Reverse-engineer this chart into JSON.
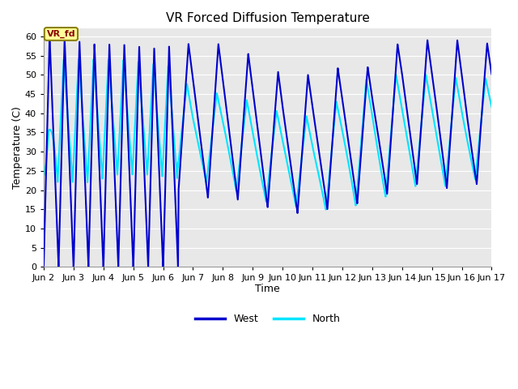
{
  "title": "VR Forced Diffusion Temperature",
  "xlabel": "Time",
  "ylabel": "Temperature (C)",
  "xlim": [
    2,
    17
  ],
  "ylim": [
    0,
    62
  ],
  "yticks": [
    0,
    5,
    10,
    15,
    20,
    25,
    30,
    35,
    40,
    45,
    50,
    55,
    60
  ],
  "xtick_positions": [
    2,
    3,
    4,
    5,
    6,
    7,
    8,
    9,
    10,
    11,
    12,
    13,
    14,
    15,
    16,
    17
  ],
  "xtick_labels": [
    "Jun 2",
    "Jun 3",
    "Jun 4",
    "Jun 5",
    "Jun 6",
    "Jun 7",
    "Jun 8",
    "Jun 9",
    "Jun 10",
    "Jun 11",
    "Jun 12",
    "Jun 13",
    "Jun 14",
    "Jun 15",
    "Jun 16",
    "Jun 17"
  ],
  "west_color": "#0000CD",
  "north_color": "#00E5FF",
  "bg_color": "#E8E8E8",
  "grid_color": "#FFFFFF",
  "annotation_text": "VR_fd",
  "annotation_fg": "#8B0000",
  "annotation_bg": "#FFFF99",
  "annotation_border": "#8B8000",
  "legend_west": "West",
  "legend_north": "North",
  "linewidth": 1.5,
  "title_fontsize": 11,
  "axis_fontsize": 9,
  "tick_fontsize": 8
}
